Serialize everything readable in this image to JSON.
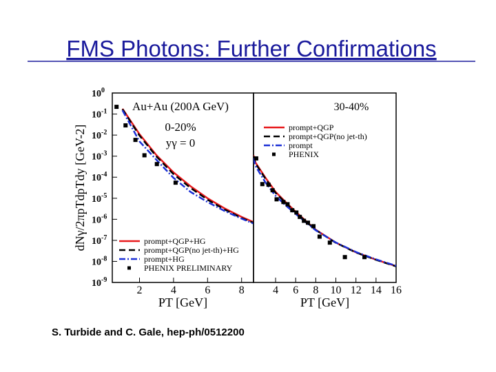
{
  "title": "FMS Photons: Further Confirmations",
  "citation": "S. Turbide and C. Gale, hep-ph/0512200",
  "chart_data": [
    {
      "type": "line",
      "log_y": true,
      "ylabel": "dNγ/2πpTdpTdy [GeV-2]",
      "xlabel": "PT [GeV]",
      "annotations": [
        "Au+Au (200A GeV)",
        "0-20%",
        "yγ = 0"
      ],
      "xlim": [
        0.4,
        8.7
      ],
      "xticks": [
        2,
        4,
        6,
        8
      ],
      "ylim": [
        1e-09,
        1
      ],
      "yticks": [
        {
          "value": 1,
          "label": "10",
          "exp": "0"
        },
        {
          "value": 0.1,
          "label": "10",
          "exp": "-1"
        },
        {
          "value": 0.01,
          "label": "10",
          "exp": "-2"
        },
        {
          "value": 0.001,
          "label": "10",
          "exp": "-3"
        },
        {
          "value": 0.0001,
          "label": "10",
          "exp": "-4"
        },
        {
          "value": 1e-05,
          "label": "10",
          "exp": "-5"
        },
        {
          "value": 1e-06,
          "label": "10",
          "exp": "-6"
        },
        {
          "value": 1e-07,
          "label": "10",
          "exp": "-7"
        },
        {
          "value": 1e-08,
          "label": "10",
          "exp": "-8"
        },
        {
          "value": 1e-09,
          "label": "10",
          "exp": "-9"
        }
      ],
      "legend": "lower left",
      "series": [
        {
          "name": "prompt+QGP+HG",
          "color": "#e8191c",
          "linestyle": "solid",
          "x": [
            1,
            2,
            3,
            4,
            5,
            6,
            7,
            8,
            8.7
          ],
          "values": [
            0.18,
            0.011,
            0.0011,
            0.00017,
            3.7e-05,
            1e-05,
            3.3e-06,
            1.3e-06,
            7.4e-07
          ]
        },
        {
          "name": "prompt+QGP(no jet-th)+HG",
          "color": "#000000",
          "linestyle": "dashed",
          "x": [
            1,
            2,
            3,
            4,
            5,
            6,
            7,
            8,
            8.7
          ],
          "values": [
            0.17,
            0.0095,
            0.00095,
            0.00014,
            3.1e-05,
            8.5e-06,
            2.9e-06,
            1.15e-06,
            6.8e-07
          ]
        },
        {
          "name": "prompt+HG",
          "color": "#1a2fd6",
          "linestyle": "dashdot",
          "x": [
            1,
            2,
            3,
            4,
            5,
            6,
            7,
            8,
            8.7
          ],
          "values": [
            0.15,
            0.005,
            0.00066,
            9.3e-05,
            2e-05,
            6.6e-06,
            2.5e-06,
            1.07e-06,
            6.3e-07
          ]
        },
        {
          "name": "PHENIX PRELIMINARY",
          "color": "#000000",
          "linestyle": "none",
          "marker": "square",
          "x": [
            0.65,
            1.18,
            1.76,
            2.29,
            3.02,
            4.12
          ],
          "values": [
            0.22,
            0.029,
            0.0059,
            0.0011,
            0.00042,
            5.5e-05
          ]
        }
      ]
    },
    {
      "type": "line",
      "log_y": true,
      "xlabel": "PT [GeV]",
      "annotations": [
        "30-40%"
      ],
      "xlim": [
        1.8,
        16
      ],
      "xticks": [
        4,
        6,
        8,
        10,
        12,
        14,
        16
      ],
      "ylim": [
        1e-09,
        1
      ],
      "legend": "upper right",
      "series": [
        {
          "name": "prompt+QGP",
          "color": "#e8191c",
          "linestyle": "solid",
          "x": [
            1.8,
            2,
            3,
            4,
            5,
            6,
            7,
            8,
            10,
            12,
            14,
            16
          ],
          "values": [
            0.0011,
            0.0005,
            9.3e-05,
            2e-05,
            6.6e-06,
            2.3e-06,
            8.5e-07,
            3.2e-07,
            7.8e-08,
            2.7e-08,
            1.2e-08,
            5.9e-09
          ]
        },
        {
          "name": "prompt+QGP(no jet-th)",
          "color": "#000000",
          "linestyle": "dashed",
          "x": [
            1.8,
            2,
            3,
            4,
            5,
            6,
            7,
            8,
            10,
            12,
            14,
            16
          ],
          "values": [
            0.001,
            0.00045,
            8.3e-05,
            1.8e-05,
            6e-06,
            2.1e-06,
            8e-07,
            3.1e-07,
            7.6e-08,
            2.65e-08,
            1.18e-08,
            5.8e-09
          ]
        },
        {
          "name": "prompt",
          "color": "#1a2fd6",
          "linestyle": "dashdot",
          "x": [
            1.8,
            2,
            3,
            4,
            5,
            6,
            7,
            8,
            10,
            12,
            14,
            16
          ],
          "values": [
            0.0008,
            0.00034,
            5.5e-05,
            1.3e-05,
            4.6e-06,
            1.8e-06,
            7.2e-07,
            3e-07,
            7.9e-08,
            2.8e-08,
            1.25e-08,
            6.2e-09
          ]
        },
        {
          "name": "PHENIX",
          "color": "#000000",
          "linestyle": "none",
          "marker": "square",
          "x": [
            2.07,
            2.68,
            3.29,
            3.7,
            4.1,
            4.78,
            5.19,
            5.66,
            6.07,
            6.41,
            6.82,
            7.22,
            7.77,
            8.38,
            9.4,
            10.9,
            12.85
          ],
          "values": [
            0.00078,
            4.7e-05,
            4.4e-05,
            2.4e-05,
            8.9e-06,
            6.6e-06,
            5.2e-06,
            2.7e-06,
            2.1e-06,
            1.3e-06,
            8.5e-07,
            6.9e-07,
            4.7e-07,
            1.5e-07,
            7.8e-08,
            1.6e-08,
            1.6e-08
          ]
        }
      ]
    }
  ]
}
